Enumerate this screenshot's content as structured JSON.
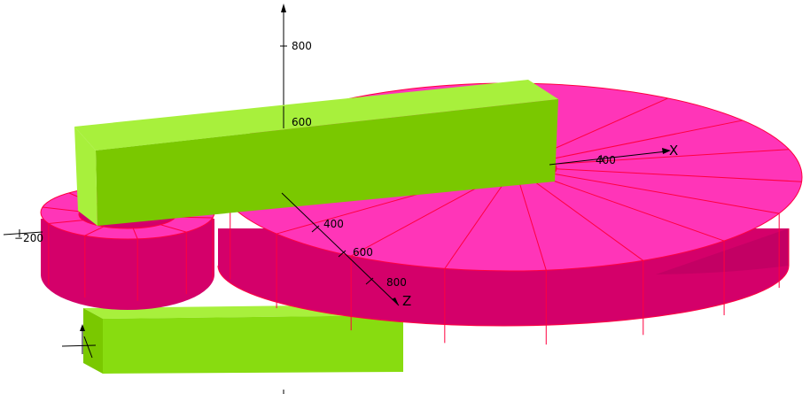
{
  "colors": {
    "background": "#ffffff",
    "gear_top": "#ff35b8",
    "gear_side": "#d4006a",
    "gear_side_dark": "#b80060",
    "gear_edge": "#ff0040",
    "link_light": "#a8f03c",
    "link_mid": "#7ac800",
    "link_front": "#88dc10",
    "axis": "#000000"
  },
  "axes": {
    "vertical_ticks": [
      "800",
      "600"
    ],
    "z_ticks": [
      "400",
      "600",
      "800"
    ],
    "left_tick": "−200",
    "x_tick": "400",
    "x_label": "X",
    "z_label": "Z"
  },
  "parts": {
    "large_gear_segments": 18,
    "small_gear_segments": 10
  }
}
